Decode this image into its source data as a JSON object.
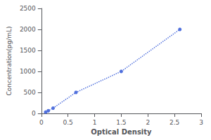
{
  "chart_data": {
    "type": "line",
    "xlabel": "Optical Density",
    "ylabel": "Concentration(pg/mL)",
    "x": [
      0.08,
      0.13,
      0.22,
      0.65,
      1.5,
      2.6
    ],
    "values": [
      31,
      62,
      125,
      500,
      1000,
      2000
    ],
    "xlim": [
      0,
      3
    ],
    "ylim": [
      0,
      2500
    ],
    "xticks": [
      0,
      0.5,
      1,
      1.5,
      2,
      2.5,
      3
    ],
    "yticks": [
      0,
      500,
      1000,
      1500,
      2000,
      2500
    ],
    "line_style": "dotted",
    "marker": "circle",
    "grid": false
  }
}
